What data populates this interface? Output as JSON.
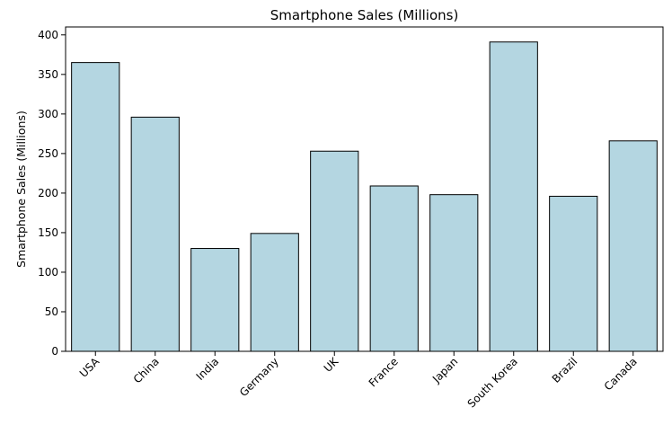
{
  "chart_data": {
    "type": "bar",
    "title": "Smartphone Sales (Millions)",
    "xlabel": "",
    "ylabel": "Smartphone Sales (Millions)",
    "categories": [
      "USA",
      "China",
      "India",
      "Germany",
      "UK",
      "France",
      "Japan",
      "South Korea",
      "Brazil",
      "Canada"
    ],
    "values": [
      365,
      296,
      130,
      149,
      253,
      209,
      198,
      391,
      196,
      266
    ],
    "ylim": [
      0,
      410
    ],
    "yticks": [
      0,
      50,
      100,
      150,
      200,
      250,
      300,
      350,
      400
    ],
    "grid": false,
    "legend": "none",
    "bar_color": "#b4d6e1",
    "edge_color": "#000000"
  }
}
